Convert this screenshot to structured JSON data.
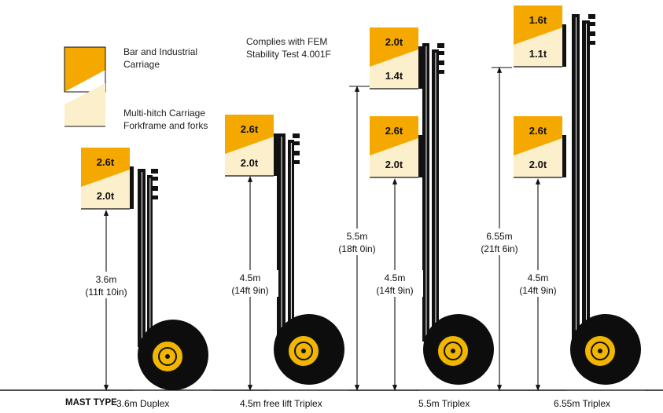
{
  "colors": {
    "orange": "#F5A800",
    "cream": "#FCEFCB",
    "black": "#111111",
    "tire": "#0d0d0d",
    "hub": "#F2B600"
  },
  "legend": {
    "bar_line1": "Bar and Industrial",
    "bar_line2": "Carriage",
    "multi_line1": "Multi-hitch Carriage",
    "multi_line2": "Forkframe and forks"
  },
  "note": {
    "line1": "Complies with FEM",
    "line2": "Stability Test 4.001F"
  },
  "footer": {
    "label": "MAST TYPE",
    "types": [
      "3.6m Duplex",
      "4.5m free lift Triplex",
      "5.5m Triplex",
      "6.55m Triplex"
    ]
  },
  "masts": [
    {
      "name": "3.6m Duplex",
      "badges": [
        {
          "top": "2.6t",
          "bottom": "2.0t"
        }
      ],
      "heights": [
        {
          "metric": "3.6m",
          "imperial": "(11ft 10in)"
        }
      ]
    },
    {
      "name": "4.5m free lift Triplex",
      "badges": [
        {
          "top": "2.6t",
          "bottom": "2.0t"
        }
      ],
      "heights": [
        {
          "metric": "4.5m",
          "imperial": "(14ft 9in)"
        }
      ]
    },
    {
      "name": "5.5m Triplex",
      "badges": [
        {
          "top": "2.0t",
          "bottom": "1.4t"
        },
        {
          "top": "2.6t",
          "bottom": "2.0t"
        }
      ],
      "heights": [
        {
          "metric": "5.5m",
          "imperial": "(18ft 0in)"
        },
        {
          "metric": "4.5m",
          "imperial": "(14ft 9in)"
        }
      ]
    },
    {
      "name": "6.55m Triplex",
      "badges": [
        {
          "top": "1.6t",
          "bottom": "1.1t"
        },
        {
          "top": "2.6t",
          "bottom": "2.0t"
        }
      ],
      "heights": [
        {
          "metric": "6.55m",
          "imperial": "(21ft 6in)"
        },
        {
          "metric": "4.5m",
          "imperial": "(14ft 9in)"
        }
      ]
    }
  ]
}
